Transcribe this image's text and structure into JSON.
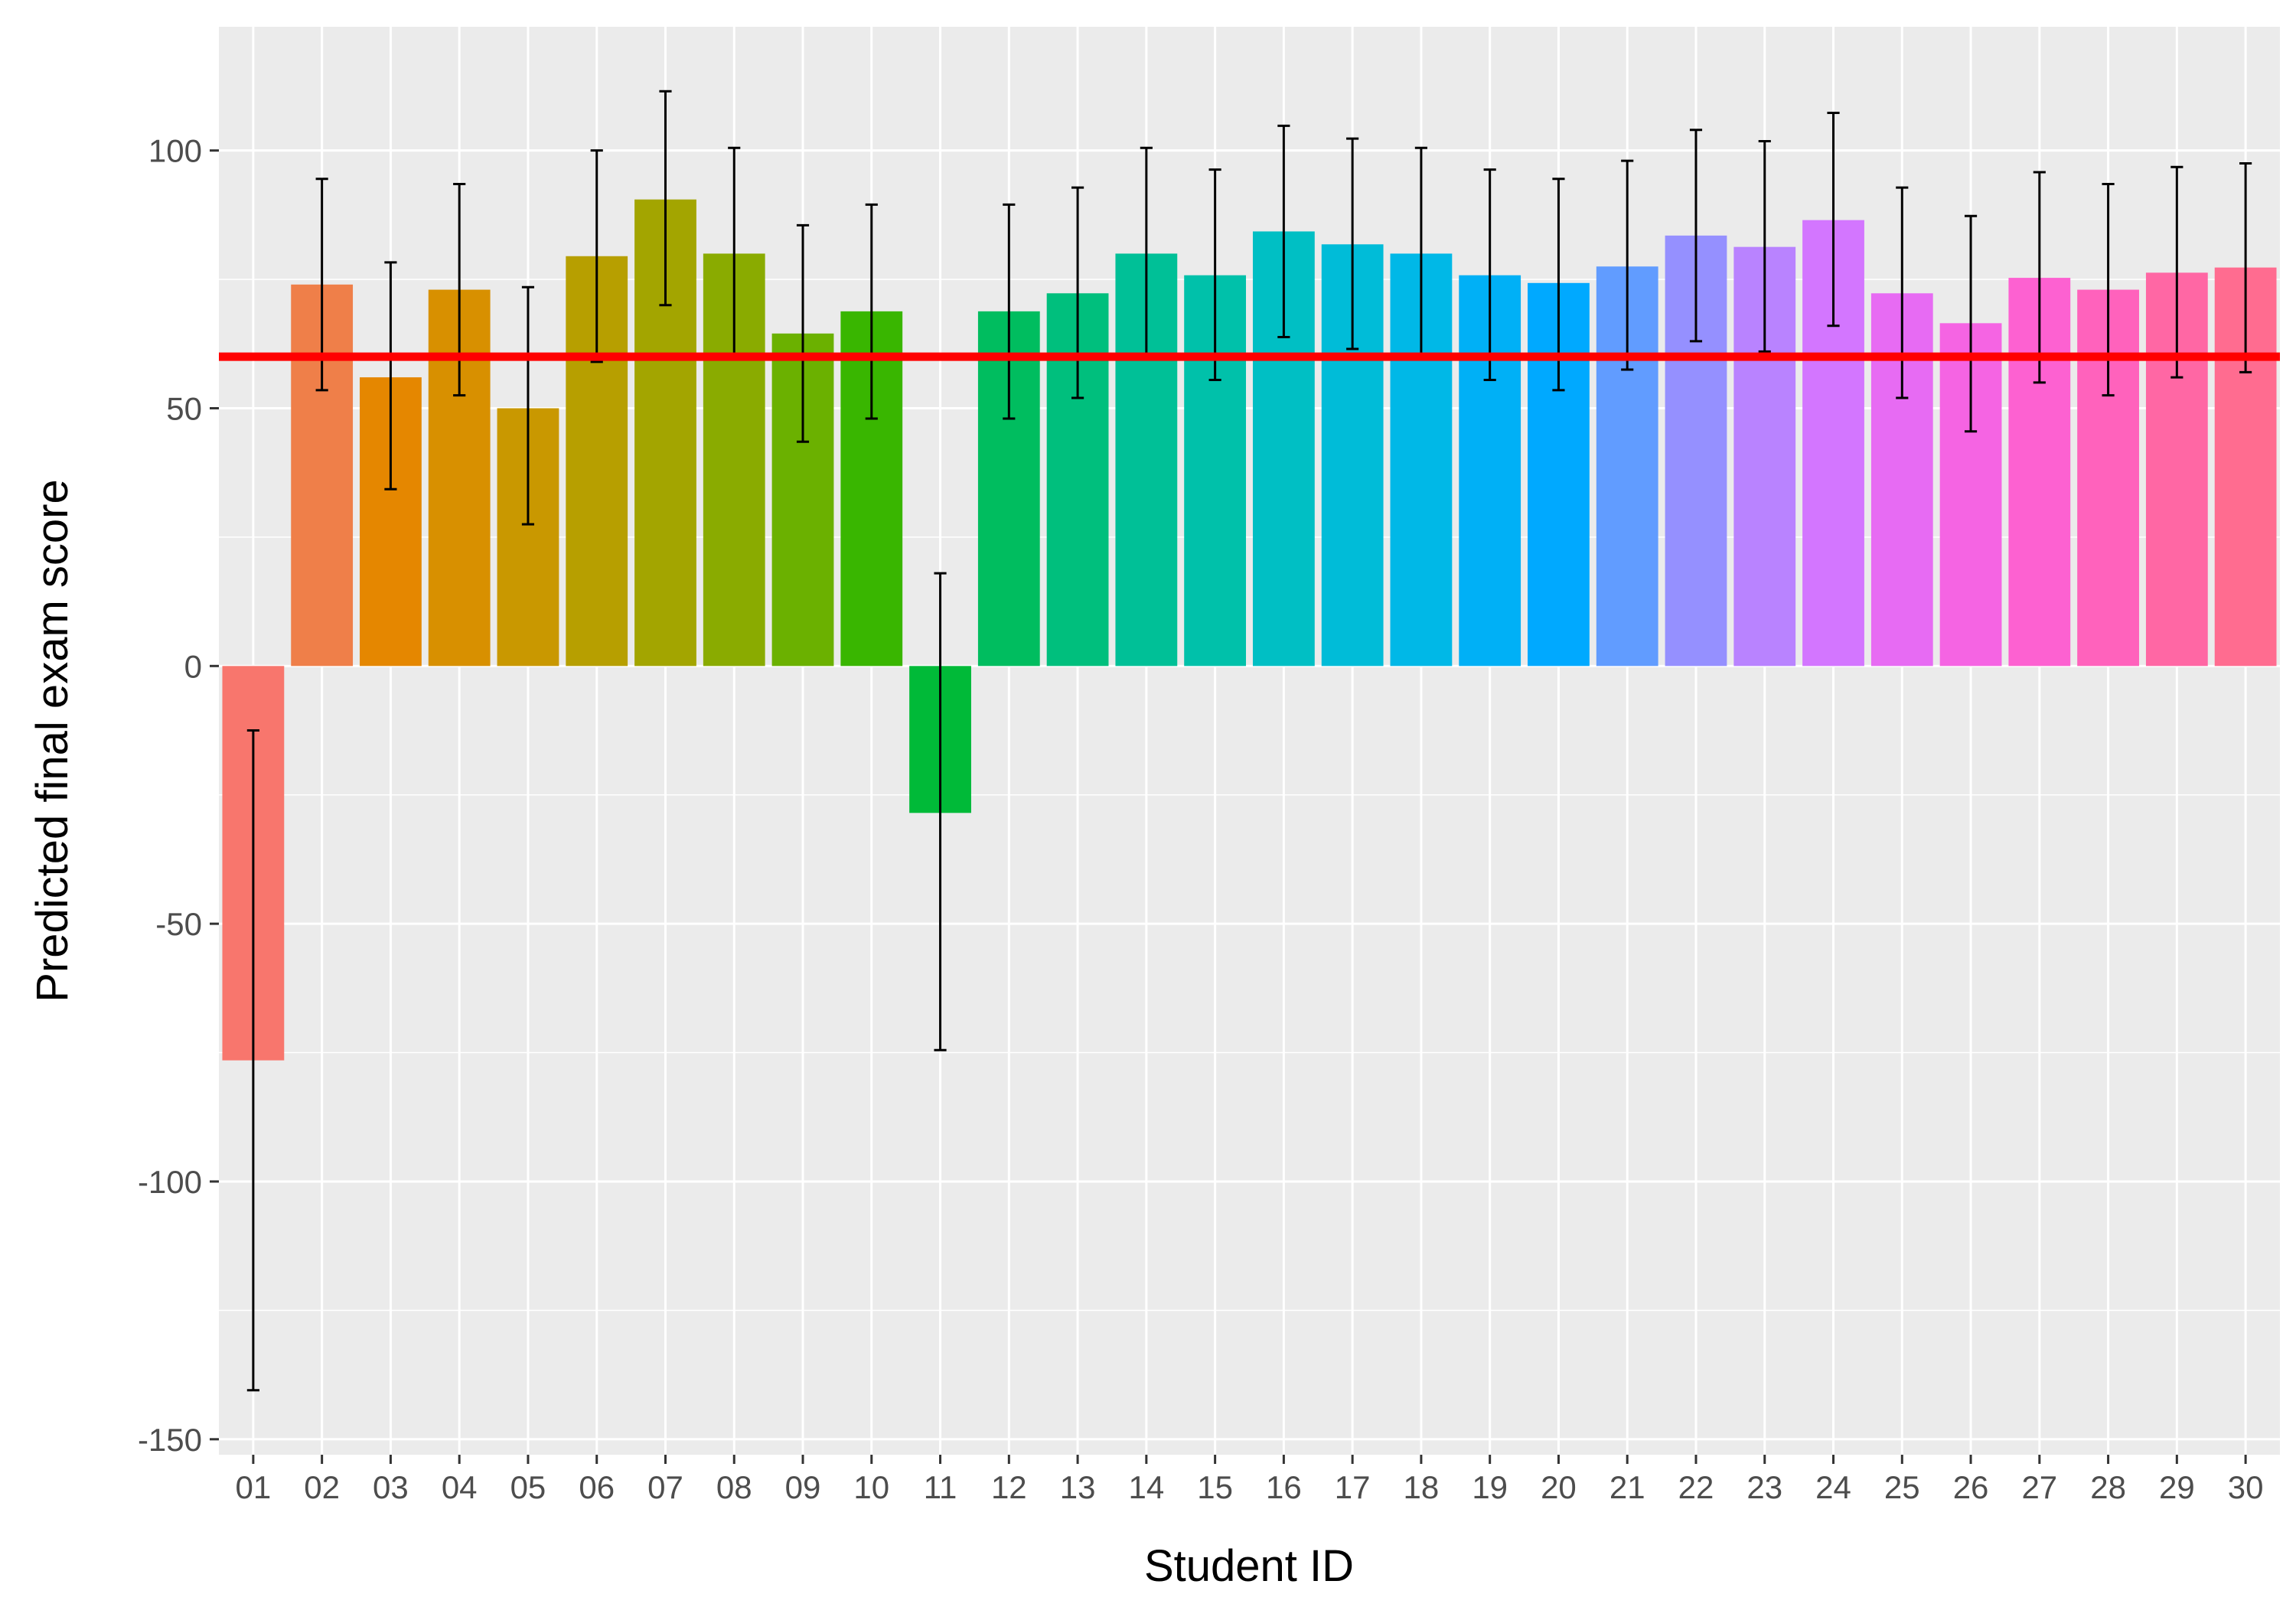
{
  "chart_data": {
    "type": "bar",
    "title": "",
    "xlabel": "Student ID",
    "ylabel": "Predicted final exam score",
    "ylim": [
      -153,
      124
    ],
    "yticks": [
      -150,
      -100,
      -50,
      0,
      50,
      100
    ],
    "grid": true,
    "legend": "none",
    "categories": [
      "01",
      "02",
      "03",
      "04",
      "05",
      "06",
      "07",
      "08",
      "09",
      "10",
      "11",
      "12",
      "13",
      "14",
      "15",
      "16",
      "17",
      "18",
      "19",
      "20",
      "21",
      "22",
      "23",
      "24",
      "25",
      "26",
      "27",
      "28",
      "29",
      "30"
    ],
    "values": [
      -76.5,
      74,
      56,
      73,
      50,
      79.5,
      90.5,
      80,
      64.5,
      68.8,
      -28.5,
      68.8,
      72.3,
      80,
      75.8,
      84.3,
      81.8,
      80,
      75.8,
      74.3,
      77.5,
      83.5,
      81.3,
      86.5,
      72.3,
      66.5,
      75.3,
      73,
      76.3,
      77.3
    ],
    "error_low": [
      -140.5,
      53.5,
      34.3,
      52.5,
      27.5,
      59,
      70,
      60,
      43.5,
      48,
      -74.5,
      48,
      52,
      60,
      55.5,
      63.8,
      61.5,
      60,
      55.5,
      53.5,
      57.5,
      63,
      61,
      66,
      52,
      45.5,
      55,
      52.5,
      56,
      57
    ],
    "error_high": [
      -12.5,
      94.5,
      78.3,
      93.5,
      73.5,
      100,
      111.5,
      100.5,
      85.5,
      89.5,
      18,
      89.5,
      92.8,
      100.5,
      96.3,
      104.8,
      102.3,
      100.5,
      96.3,
      94.5,
      98,
      104,
      101.8,
      107.3,
      92.8,
      87.3,
      95.8,
      93.5,
      96.8,
      97.5
    ],
    "reference_line": {
      "y": 60,
      "color": "#ff0000"
    },
    "colors": [
      "#F8766D",
      "#EF7F49",
      "#E58700",
      "#D89000",
      "#C99800",
      "#B79F00",
      "#A3A500",
      "#8AAB00",
      "#6BB100",
      "#39B600",
      "#00BA38",
      "#00BD5F",
      "#00BF7D",
      "#00C097",
      "#00C1AA",
      "#00BFC4",
      "#00BCD8",
      "#00B8E7",
      "#00B0F6",
      "#00A9FF",
      "#619CFF",
      "#9590FF",
      "#B983FF",
      "#D376FF",
      "#E76BF3",
      "#F564E3",
      "#FD61D1",
      "#FF62BC",
      "#FF67A4",
      "#FF6C90"
    ],
    "panel_background": "#ebebeb",
    "grid_color": "#ffffff"
  }
}
